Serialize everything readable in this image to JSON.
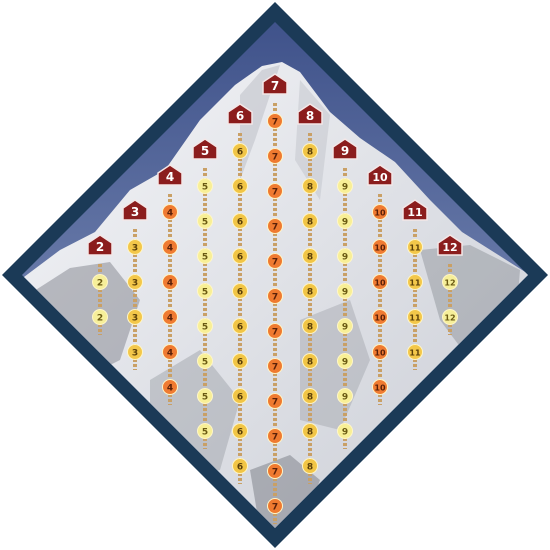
{
  "board": {
    "frame_color": "#1b3a57",
    "sky_color": "#7f93bd",
    "snow_color": "#eef0f4",
    "rock_color": "#7b7e86",
    "rope_color": "#c9a066",
    "camp_color": "#8b1d1d"
  },
  "columns": [
    {
      "label": "2",
      "steps": 2,
      "circle_color": "#f6ef9a",
      "text_color": "#6a5a12"
    },
    {
      "label": "3",
      "steps": 4,
      "circle_color": "#f3c74a",
      "text_color": "#5a3f08"
    },
    {
      "label": "4",
      "steps": 6,
      "circle_color": "#ef7b32",
      "text_color": "#5a2008"
    },
    {
      "label": "5",
      "steps": 8,
      "circle_color": "#f8ef96",
      "text_color": "#6a5a12"
    },
    {
      "label": "6",
      "steps": 10,
      "circle_color": "#f1c546",
      "text_color": "#5a3f08"
    },
    {
      "label": "7",
      "steps": 12,
      "circle_color": "#ef7a30",
      "text_color": "#5a2008"
    },
    {
      "label": "8",
      "steps": 10,
      "circle_color": "#f1c546",
      "text_color": "#5a3f08"
    },
    {
      "label": "9",
      "steps": 8,
      "circle_color": "#f8ef96",
      "text_color": "#6a5a12"
    },
    {
      "label": "10",
      "steps": 6,
      "circle_color": "#ef7b32",
      "text_color": "#5a2008"
    },
    {
      "label": "11",
      "steps": 4,
      "circle_color": "#f3c74a",
      "text_color": "#5a3f08"
    },
    {
      "label": "12",
      "steps": 2,
      "circle_color": "#f6ef9a",
      "text_color": "#6a5a12"
    }
  ]
}
